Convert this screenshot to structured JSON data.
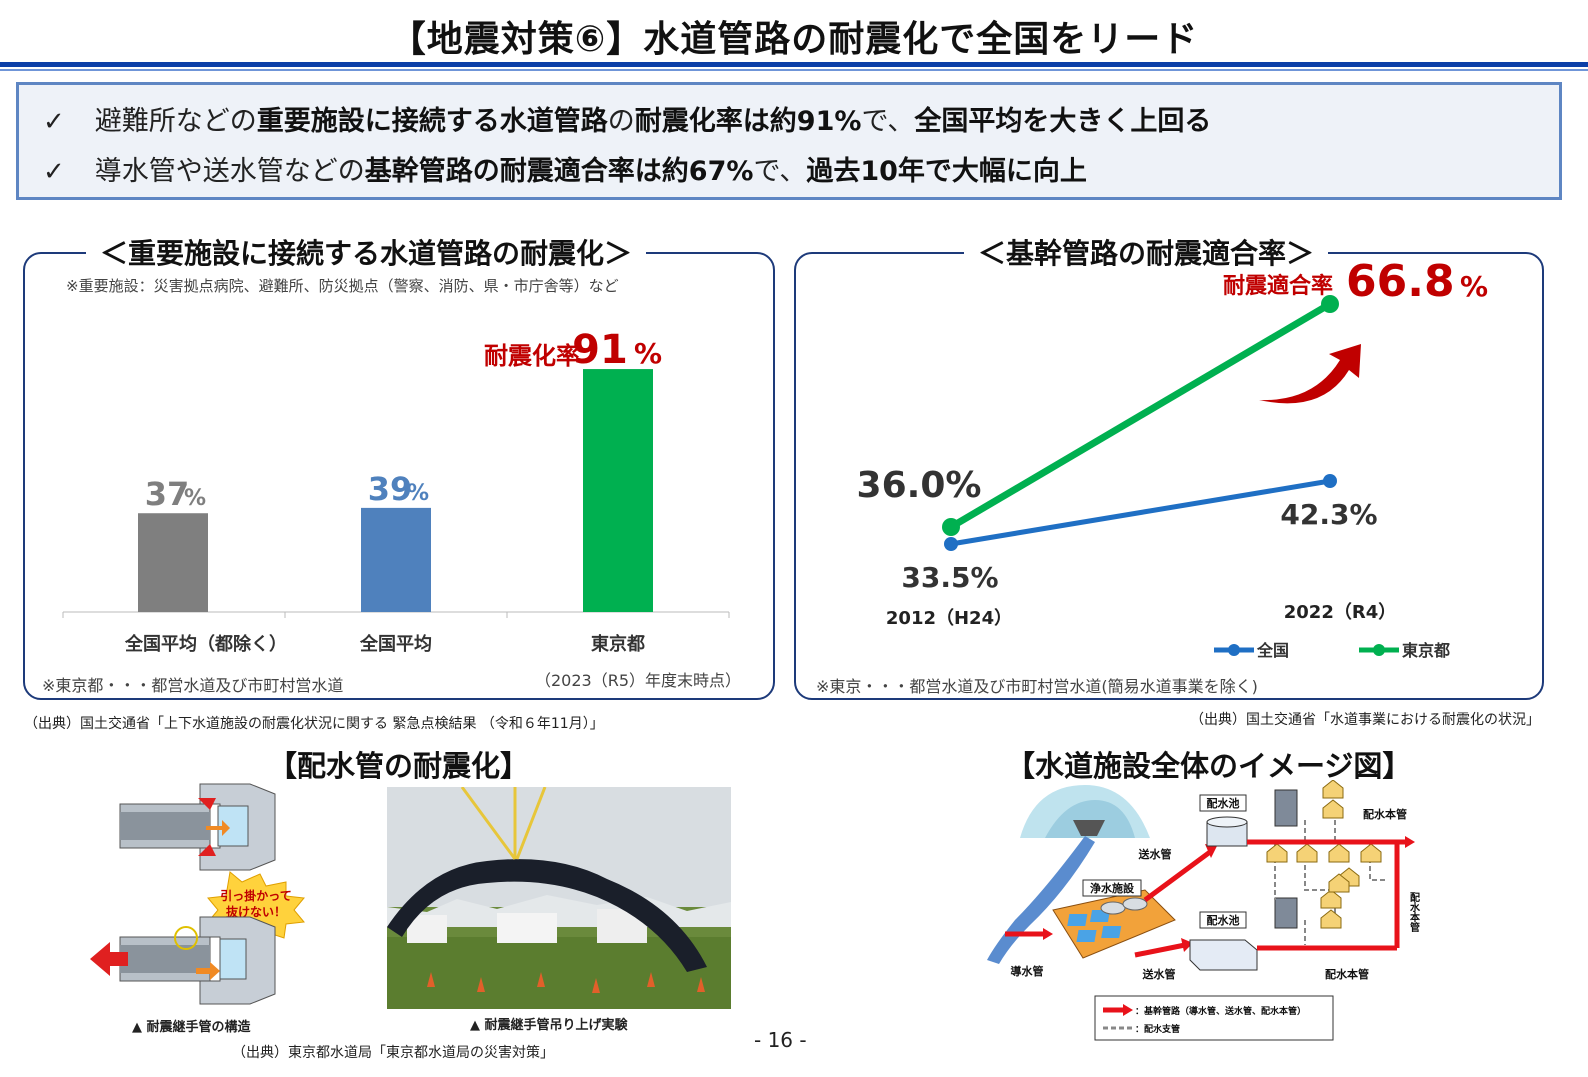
{
  "header": {
    "title": "【地震対策⑥】水道管路の耐震化で全国をリード"
  },
  "summary": {
    "check_glyph": "✓",
    "line1": {
      "pre": "避難所などの",
      "bold1": "重要施設に接続する水道管路",
      "mid": "の",
      "bold2": "耐震化率は約91%",
      "post": "で、",
      "bold3": "全国平均を大きく上回る"
    },
    "line2": {
      "pre": "導水管や送水管などの",
      "bold1": "基幹管路の耐震適合率は約67%",
      "post": "で、",
      "bold3": "過去10年で大幅に向上"
    }
  },
  "left_panel": {
    "title": "＜重要施設に接続する水道管路の耐震化＞",
    "note": "※重要施設：災害拠点病院、避難所、防災拠点（警察、消防、県・市庁舎等）など",
    "footnote": "※東京都・・・都営水道及び市町村営水道",
    "as_of": "（2023（R5）年度末時点）",
    "callout_label": "耐震化率"
  },
  "right_panel": {
    "title": "＜基幹管路の耐震適合率＞",
    "callout_label": "耐震適合率",
    "footnote": "※東京・・・都営水道及び市町村営水道(簡易水道事業を除く)"
  },
  "chart_data": [
    {
      "type": "bar",
      "categories": [
        "全国平均（都除く）",
        "全国平均",
        "東京都"
      ],
      "values": [
        37,
        39,
        91
      ],
      "value_labels": [
        "37",
        "39",
        "91"
      ],
      "unit": "%",
      "colors": [
        "#7f7f7f",
        "#4f81bd",
        "#00b050"
      ],
      "label_colors": [
        "#7f7f7f",
        "#4f81bd",
        "#c00000"
      ],
      "ylim": [
        0,
        100
      ]
    },
    {
      "type": "line",
      "x": [
        "2012（H24）",
        "2022（R4）"
      ],
      "series": [
        {
          "name": "全国",
          "values": [
            33.5,
            42.3
          ],
          "labels": [
            "33.5%",
            "42.3%"
          ],
          "color": "#1f6fc4"
        },
        {
          "name": "東京都",
          "values": [
            36.0,
            66.8
          ],
          "labels": [
            "36.0%",
            "66.8"
          ],
          "color": "#00b050"
        }
      ],
      "highlight_unit": "%",
      "legend": "bottom-right"
    }
  ],
  "sources": {
    "left": "（出典）国土交通省「上下水道施設の耐震化状況に関する 緊急点検結果 （令和６年11月）」",
    "right": "（出典）国土交通省「水道事業における耐震化の状況」",
    "bottom": "（出典）東京都水道局「東京都水道局の災害対策」"
  },
  "pipes_section": {
    "title": "【配水管の耐震化】",
    "burst_text1": "引っ掛かって",
    "burst_text2": "抜けない！",
    "caption1": "▲ 耐震継手管の構造",
    "caption2": "▲ 耐震継手管吊り上げ実験"
  },
  "facility_section": {
    "title": "【水道施設全体のイメージ図】",
    "labels": {
      "reservoir_top": "配水池",
      "reservoir_bottom": "配水池",
      "treatment": "浄水施設",
      "transmission_top": "送水管",
      "transmission_bottom": "送水管",
      "intake": "導水管",
      "main_top": "配水本管",
      "main_side": "配水本管",
      "main_bottom": "配水本管",
      "legend_red": "：基幹管路（導水管、送水管、配水本管）",
      "legend_gray": "：配水支管"
    }
  },
  "page_number": "- 16 -"
}
